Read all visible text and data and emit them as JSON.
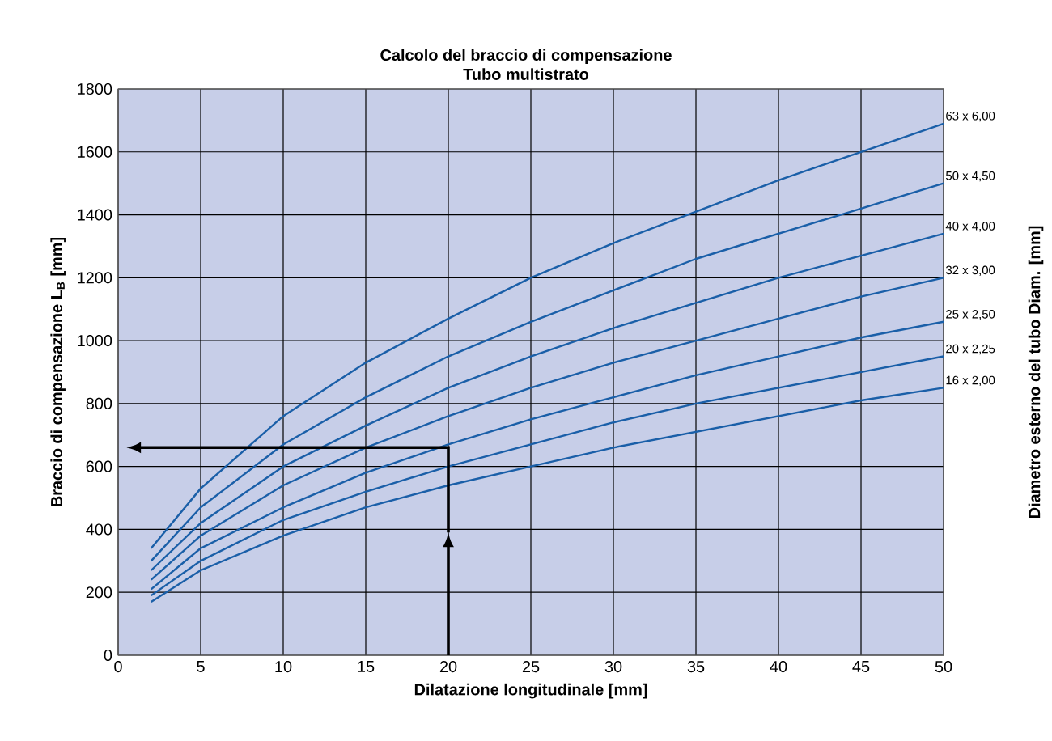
{
  "chart_data": {
    "type": "line",
    "title": "Calcolo del braccio di compensazione",
    "subtitle": "Tubo multistrato",
    "xlabel": "Dilatazione longitudinale [mm]",
    "ylabel": "Braccio di compensazione L$_{B}$ [mm]",
    "y2label": "Diametro esterno del tubo Diam. [mm]",
    "x": [
      2,
      5,
      10,
      15,
      20,
      25,
      30,
      35,
      40,
      45,
      50
    ],
    "series": [
      {
        "name": "63 x 6,00",
        "color": "#1a5fa8",
        "values": [
          340,
          530,
          760,
          930,
          1070,
          1200,
          1310,
          1410,
          1510,
          1600,
          1690
        ]
      },
      {
        "name": "50 x 4,50",
        "color": "#1a5fa8",
        "values": [
          300,
          470,
          670,
          820,
          950,
          1060,
          1160,
          1260,
          1340,
          1420,
          1500
        ]
      },
      {
        "name": "40 x 4,00",
        "color": "#1a5fa8",
        "values": [
          270,
          420,
          600,
          730,
          850,
          950,
          1040,
          1120,
          1200,
          1270,
          1340
        ]
      },
      {
        "name": "32 x 3,00",
        "color": "#1a5fa8",
        "values": [
          240,
          380,
          540,
          660,
          760,
          850,
          930,
          1000,
          1070,
          1140,
          1200
        ]
      },
      {
        "name": "25 x 2,50",
        "color": "#1a5fa8",
        "values": [
          210,
          340,
          470,
          580,
          670,
          750,
          820,
          890,
          950,
          1010,
          1060
        ]
      },
      {
        "name": "20 x 2,25",
        "color": "#1a5fa8",
        "values": [
          190,
          300,
          430,
          520,
          600,
          670,
          740,
          800,
          850,
          900,
          950
        ]
      },
      {
        "name": "16 x 2,00",
        "color": "#1a5fa8",
        "values": [
          170,
          270,
          380,
          470,
          540,
          600,
          660,
          710,
          760,
          810,
          850
        ]
      }
    ],
    "xlim": [
      0,
      50
    ],
    "ylim": [
      0,
      1800
    ],
    "xticks": [
      0,
      5,
      10,
      15,
      20,
      25,
      30,
      35,
      40,
      45,
      50
    ],
    "yticks": [
      0,
      200,
      400,
      600,
      800,
      1000,
      1200,
      1400,
      1600,
      1800
    ],
    "grid": true,
    "marker": "none",
    "line_style": "solid"
  }
}
